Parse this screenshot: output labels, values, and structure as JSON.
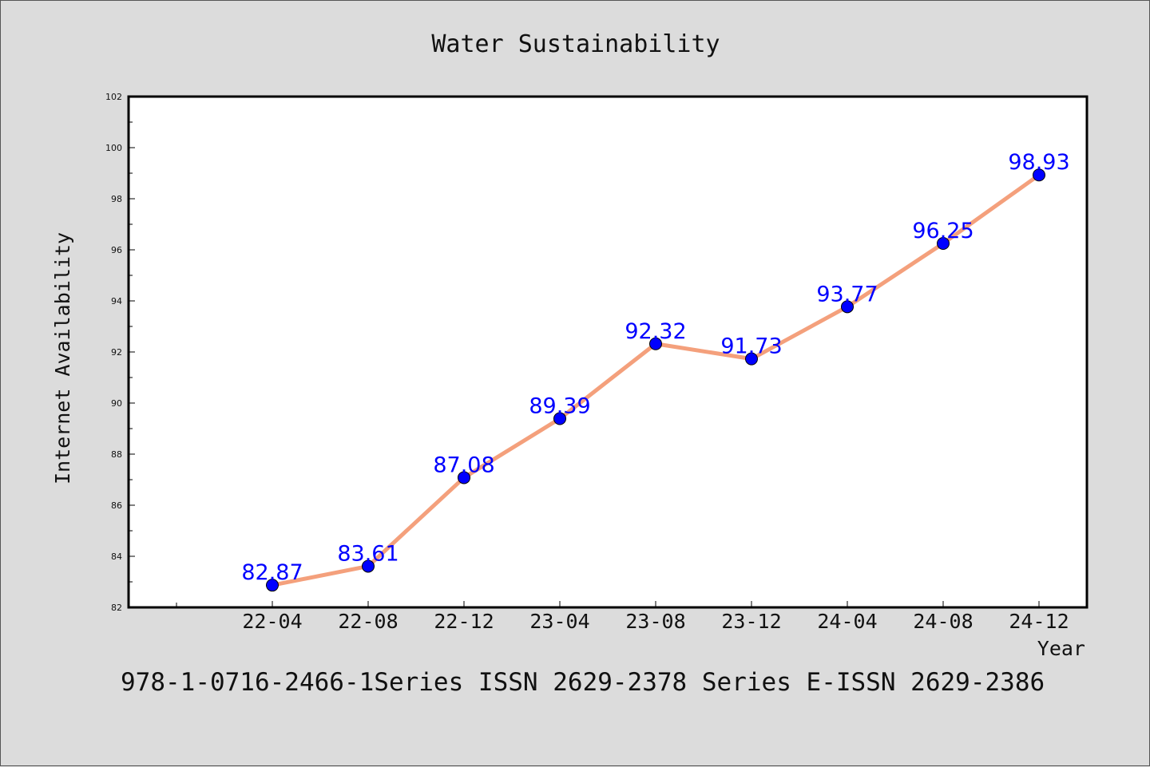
{
  "chart_data": {
    "type": "line",
    "title": "Water Sustainability",
    "xlabel": "Year",
    "ylabel": "Internet Availability",
    "categories": [
      "22-04",
      "22-08",
      "22-12",
      "23-04",
      "23-08",
      "23-12",
      "24-04",
      "24-08",
      "24-12"
    ],
    "series": [
      {
        "values": [
          82.87,
          83.61,
          87.08,
          89.39,
          92.32,
          91.73,
          93.77,
          96.25,
          98.93
        ],
        "labels": [
          "82.87",
          "83.61",
          "87.08",
          "89.39",
          "92.32",
          "91.73",
          "93.77",
          "96.25",
          "98.93"
        ]
      }
    ],
    "ylim": [
      82,
      102
    ],
    "yticks": [
      "82",
      "84",
      "86",
      "88",
      "90",
      "92",
      "94",
      "96",
      "98",
      "100",
      "102"
    ],
    "grid": false,
    "line_color": "#f4a07c",
    "marker_color": "#0000ff",
    "label_color": "#0000ff"
  },
  "footer": {
    "text": "978-1-0716-2466-1Series ISSN 2629-2378 Series E-ISSN 2629-2386"
  }
}
